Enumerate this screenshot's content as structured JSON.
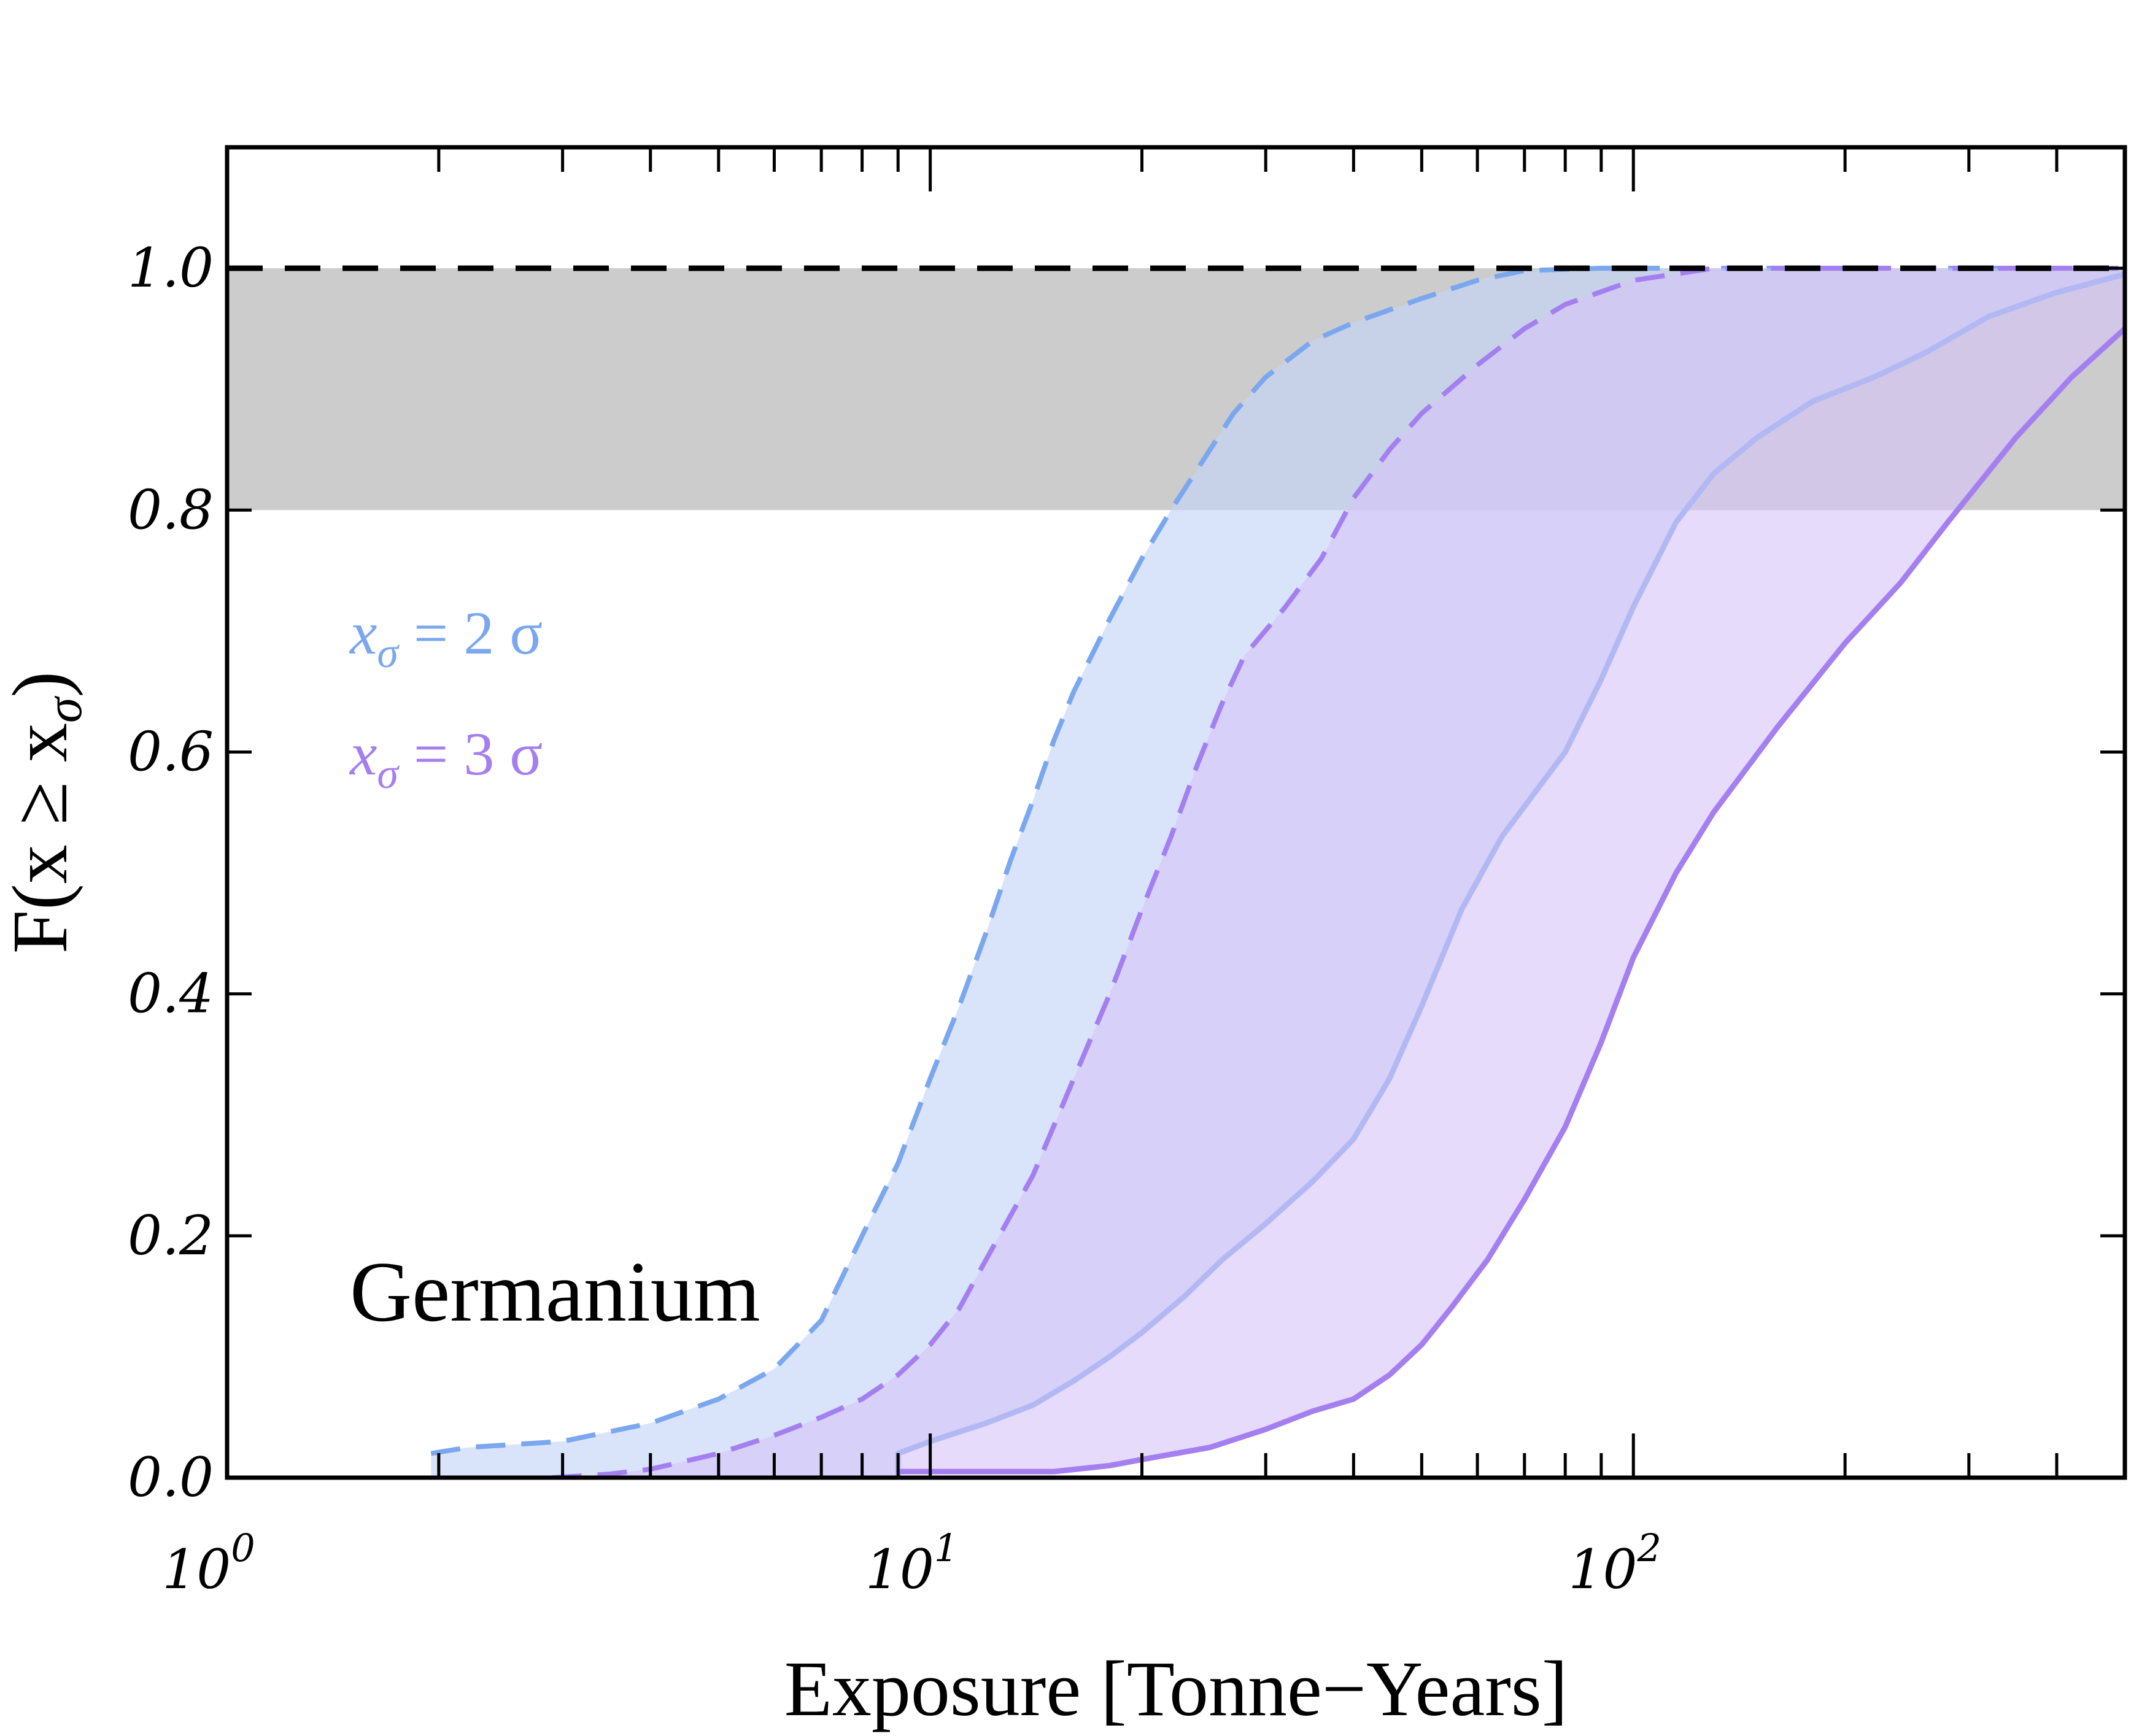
{
  "chart_data": {
    "type": "area",
    "xscale": "log",
    "xlim": [
      1,
      500
    ],
    "ylim": [
      0,
      1.1
    ],
    "xlabel": "Exposure  [Tonne−Years]",
    "ylabel": "F(x ≥ x",
    "ylabel_sub": "σ",
    "ylabel_close": ")",
    "annotation": "Germanium",
    "x_ticks": [
      {
        "value": 1,
        "base": "10",
        "exp": "0"
      },
      {
        "value": 10,
        "base": "10",
        "exp": "1"
      },
      {
        "value": 100,
        "base": "10",
        "exp": "2"
      }
    ],
    "y_ticks": [
      {
        "value": 0.0,
        "label": "0.0"
      },
      {
        "value": 0.2,
        "label": "0.2"
      },
      {
        "value": 0.4,
        "label": "0.4"
      },
      {
        "value": 0.6,
        "label": "0.6"
      },
      {
        "value": 0.8,
        "label": "0.8"
      },
      {
        "value": 1.0,
        "label": "1.0"
      }
    ],
    "reference_band": {
      "y_from": 0.8,
      "y_to": 1.0,
      "color": "#cccccc"
    },
    "reference_line": {
      "y": 1.0,
      "style": "dashed",
      "color": "#000000"
    },
    "legend": [
      {
        "prefix": "x",
        "sub": "σ",
        "text": " = 2 σ",
        "color": "#7aa7ee"
      },
      {
        "prefix": "x",
        "sub": "σ",
        "text": " = 3 σ",
        "color": "#a47ff0"
      }
    ],
    "series": [
      {
        "legend_index": 0,
        "color": "#7aa7ee",
        "fill": "#c5d6f8",
        "fill_opacity": 0.65,
        "upper": [
          [
            1.95,
            0.02
          ],
          [
            2.2,
            0.025
          ],
          [
            3,
            0.03
          ],
          [
            4,
            0.045
          ],
          [
            5,
            0.065
          ],
          [
            6,
            0.09
          ],
          [
            7,
            0.13
          ],
          [
            8,
            0.2
          ],
          [
            9,
            0.26
          ],
          [
            10,
            0.33
          ],
          [
            11,
            0.39
          ],
          [
            12,
            0.45
          ],
          [
            13,
            0.51
          ],
          [
            14,
            0.56
          ],
          [
            15,
            0.61
          ],
          [
            16,
            0.65
          ],
          [
            18,
            0.71
          ],
          [
            20,
            0.76
          ],
          [
            22,
            0.8
          ],
          [
            25,
            0.85
          ],
          [
            27,
            0.88
          ],
          [
            30,
            0.91
          ],
          [
            35,
            0.94
          ],
          [
            40,
            0.955
          ],
          [
            50,
            0.975
          ],
          [
            60,
            0.99
          ],
          [
            70,
            0.998
          ],
          [
            90,
            1.0
          ],
          [
            150,
            1.0
          ],
          [
            200,
            1.0
          ],
          [
            500,
            1.0
          ]
        ],
        "lower": [
          [
            9,
            0.0
          ],
          [
            9,
            0.02
          ],
          [
            10,
            0.03
          ],
          [
            12,
            0.045
          ],
          [
            14,
            0.06
          ],
          [
            16,
            0.08
          ],
          [
            18,
            0.1
          ],
          [
            20,
            0.12
          ],
          [
            23,
            0.15
          ],
          [
            26,
            0.18
          ],
          [
            30,
            0.21
          ],
          [
            35,
            0.245
          ],
          [
            40,
            0.28
          ],
          [
            45,
            0.33
          ],
          [
            50,
            0.39
          ],
          [
            57,
            0.47
          ],
          [
            65,
            0.53
          ],
          [
            80,
            0.6
          ],
          [
            90,
            0.66
          ],
          [
            100,
            0.72
          ],
          [
            115,
            0.79
          ],
          [
            130,
            0.83
          ],
          [
            150,
            0.86
          ],
          [
            180,
            0.89
          ],
          [
            220,
            0.91
          ],
          [
            260,
            0.93
          ],
          [
            320,
            0.96
          ],
          [
            400,
            0.98
          ],
          [
            500,
            0.995
          ]
        ]
      },
      {
        "legend_index": 1,
        "color": "#a47ff0",
        "fill": "#d5c3f7",
        "fill_opacity": 0.6,
        "upper": [
          [
            2.9,
            0.0
          ],
          [
            3.5,
            0.003
          ],
          [
            4,
            0.007
          ],
          [
            5,
            0.02
          ],
          [
            6,
            0.035
          ],
          [
            7,
            0.05
          ],
          [
            8,
            0.065
          ],
          [
            9,
            0.085
          ],
          [
            10,
            0.11
          ],
          [
            11,
            0.14
          ],
          [
            12,
            0.18
          ],
          [
            14,
            0.25
          ],
          [
            16,
            0.33
          ],
          [
            18,
            0.4
          ],
          [
            20,
            0.47
          ],
          [
            22,
            0.53
          ],
          [
            24,
            0.59
          ],
          [
            26,
            0.64
          ],
          [
            28,
            0.68
          ],
          [
            32,
            0.72
          ],
          [
            36,
            0.76
          ],
          [
            40,
            0.81
          ],
          [
            45,
            0.85
          ],
          [
            50,
            0.88
          ],
          [
            60,
            0.92
          ],
          [
            70,
            0.95
          ],
          [
            80,
            0.97
          ],
          [
            100,
            0.99
          ],
          [
            130,
            1.0
          ],
          [
            200,
            1.0
          ],
          [
            500,
            1.0
          ]
        ],
        "lower": [
          [
            9,
            0.005
          ],
          [
            12,
            0.005
          ],
          [
            15,
            0.005
          ],
          [
            18,
            0.01
          ],
          [
            20,
            0.015
          ],
          [
            25,
            0.025
          ],
          [
            30,
            0.04
          ],
          [
            35,
            0.055
          ],
          [
            40,
            0.065
          ],
          [
            45,
            0.085
          ],
          [
            50,
            0.11
          ],
          [
            55,
            0.14
          ],
          [
            62,
            0.18
          ],
          [
            70,
            0.23
          ],
          [
            80,
            0.29
          ],
          [
            90,
            0.36
          ],
          [
            100,
            0.43
          ],
          [
            115,
            0.5
          ],
          [
            130,
            0.55
          ],
          [
            160,
            0.62
          ],
          [
            200,
            0.69
          ],
          [
            240,
            0.74
          ],
          [
            280,
            0.79
          ],
          [
            350,
            0.86
          ],
          [
            420,
            0.91
          ],
          [
            500,
            0.95
          ]
        ]
      }
    ]
  }
}
